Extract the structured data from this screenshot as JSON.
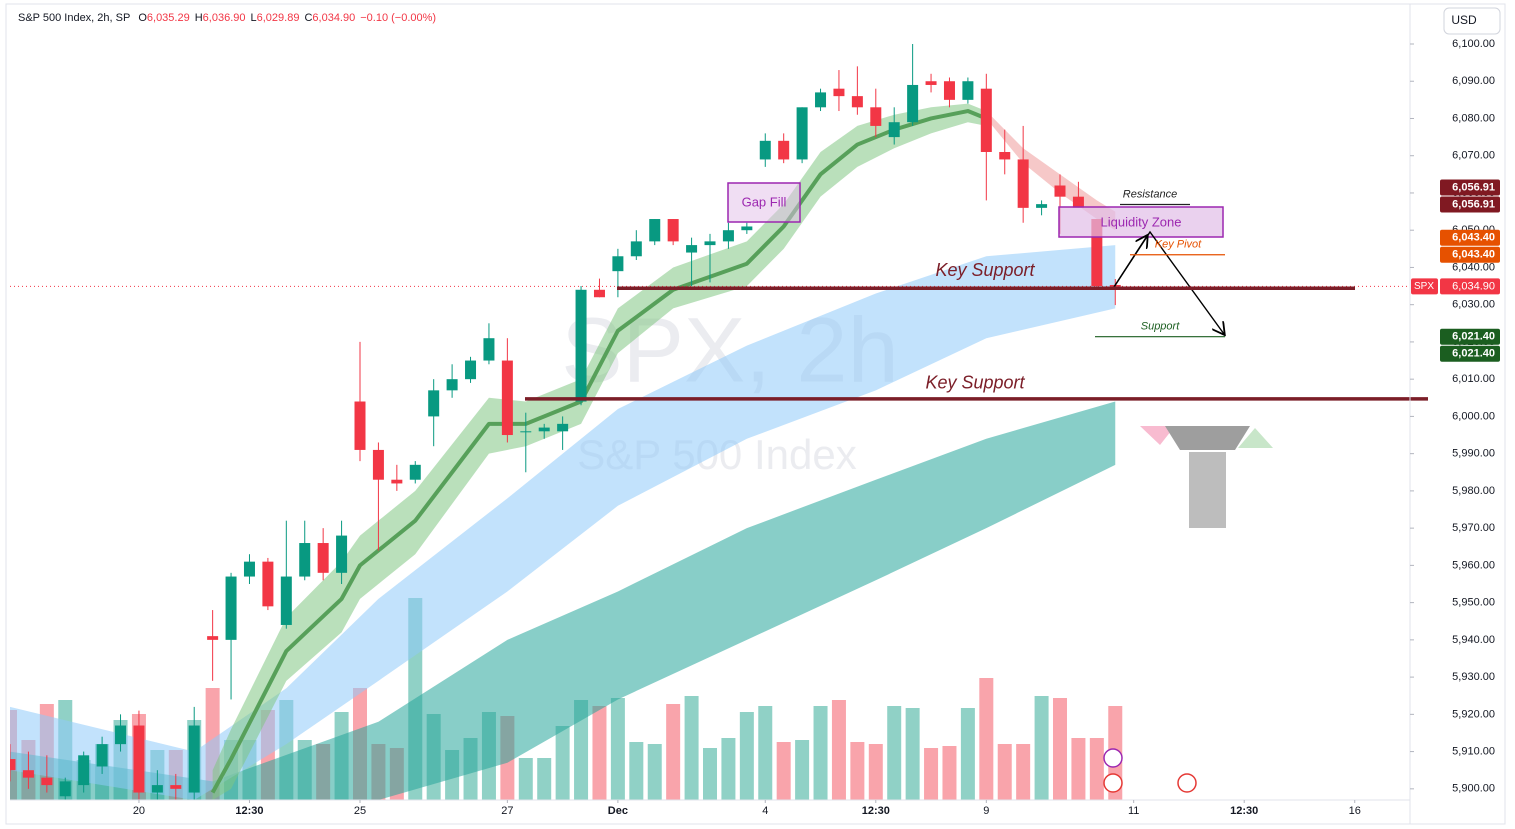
{
  "header": {
    "symbol": "S&P 500 Index, 2h, SP",
    "o_label": "O",
    "o": "6,035.29",
    "h_label": "H",
    "h": "6,036.90",
    "l_label": "L",
    "l": "6,029.89",
    "c_label": "C",
    "c": "6,034.90",
    "change": "−0.10 (−0.00%)"
  },
  "currency": "USD",
  "watermark": {
    "symbol": "SPX, 2h",
    "name": "S&P 500 Index"
  },
  "boxes": {
    "gap": "Gap Fill",
    "liquidity": "Liquidity Zone"
  },
  "chart_data": {
    "type": "candlestick",
    "up_color": "#089981",
    "down_color": "#f23645",
    "x": [
      0,
      1,
      2,
      3,
      4,
      5,
      6,
      7,
      8,
      9,
      10,
      11,
      12,
      13,
      14,
      15,
      16,
      17,
      18,
      19,
      20,
      21,
      22,
      23,
      24,
      25,
      26,
      27,
      28,
      29,
      30,
      31,
      32,
      33,
      34,
      35,
      36,
      37,
      38,
      39,
      40,
      41,
      42,
      43,
      44,
      45,
      46,
      47,
      48,
      49,
      50,
      51,
      52,
      53,
      54,
      55,
      56,
      57,
      58,
      59,
      60
    ],
    "open": [
      5908,
      5905,
      5903,
      5898,
      5901,
      5906,
      5912,
      5917,
      5899,
      5901,
      5899,
      5941,
      5940,
      5957,
      5961,
      5944,
      5957,
      5966,
      5958,
      6004,
      5991,
      5983,
      5983,
      6000,
      6007,
      6010,
      6015,
      6015,
      5996,
      5996,
      5996,
      6004,
      6034,
      6039,
      6043,
      6047,
      6053,
      6044,
      6046,
      6047,
      6050,
      6069,
      6074,
      6069,
      6083,
      6088,
      6086,
      6083,
      6075,
      6079,
      6090,
      6090,
      6085,
      6088,
      6071,
      6069,
      6056,
      6062,
      6059,
      6053,
      6035.29
    ],
    "high": [
      5912,
      5910,
      5909,
      5903,
      5910,
      5914,
      5920,
      5921,
      5905,
      5904,
      5922,
      5948,
      5958,
      5963,
      5962,
      5972,
      5972,
      5970,
      5972,
      6020,
      5993,
      5987,
      5988,
      6010,
      6014,
      6016,
      6025,
      6021,
      6001,
      5998,
      6000,
      6035,
      6037,
      6045,
      6050,
      6053,
      6053,
      6048,
      6049,
      6052,
      6052,
      6076,
      6076,
      6083,
      6088,
      6093,
      6094,
      6088,
      6083,
      6100,
      6092,
      6091,
      6091,
      6092,
      6077,
      6078,
      6058,
      6065,
      6063,
      6053,
      6036.9
    ],
    "low": [
      5902,
      5900,
      5899,
      5897,
      5899,
      5904,
      5910,
      5897,
      5897,
      5897,
      5897,
      5929,
      5924,
      5955,
      5948,
      5943,
      5956,
      5956,
      5955,
      5988,
      5964,
      5980,
      5982,
      5992,
      6005,
      6009,
      6014,
      5993,
      5985,
      5994,
      5991,
      6003,
      6032,
      6032,
      6042,
      6046,
      6046,
      6035,
      6036,
      6045,
      6049,
      6067,
      6068,
      6068,
      6082,
      6082,
      6081,
      6075,
      6073,
      6078,
      6087,
      6083,
      6084,
      6058,
      6065,
      6052,
      6054,
      6049,
      6056,
      6034,
      6029.89
    ],
    "close": [
      5905,
      5903,
      5901,
      5902,
      5909,
      5912,
      5917,
      5899,
      5901,
      5900,
      5917,
      5940,
      5957,
      5961,
      5949,
      5957,
      5966,
      5958,
      5968,
      5991,
      5983,
      5982,
      5987,
      6007,
      6010,
      6015,
      6021,
      5995,
      5996,
      5997,
      5998,
      6034,
      6032,
      6043,
      6047,
      6053,
      6047,
      6046,
      6047,
      6050,
      6051,
      6074,
      6069,
      6083,
      6087,
      6086,
      6083,
      6078,
      6079,
      6089,
      6089,
      6085,
      6090,
      6071,
      6069,
      6056,
      6057,
      6059,
      6056,
      6035,
      6034.9
    ],
    "volume": [
      45,
      30,
      48,
      50,
      20,
      28,
      40,
      43,
      25,
      25,
      40,
      56,
      30,
      30,
      45,
      50,
      30,
      28,
      44,
      56,
      28,
      26,
      101,
      43,
      25,
      31,
      44,
      42,
      21,
      21,
      37,
      50,
      47,
      51,
      29,
      28,
      48,
      52,
      26,
      31,
      44,
      47,
      29,
      30,
      47,
      50,
      29,
      28,
      47,
      46,
      26,
      27,
      46,
      61,
      28,
      28,
      52,
      51,
      31,
      31,
      47
    ],
    "xlim": [
      0,
      76
    ],
    "xticks": [
      {
        "value": 7,
        "label": "20"
      },
      {
        "value": 13,
        "label": "12:30"
      },
      {
        "value": 19,
        "label": "25"
      },
      {
        "value": 27,
        "label": "27"
      },
      {
        "value": 33,
        "label": "Dec"
      },
      {
        "value": 41,
        "label": "4"
      },
      {
        "value": 47,
        "label": "12:30"
      },
      {
        "value": 53,
        "label": "9"
      },
      {
        "value": 61,
        "label": "11"
      },
      {
        "value": 67,
        "label": "12:30"
      },
      {
        "value": 73,
        "label": "16"
      }
    ],
    "ylim": [
      5897,
      6110
    ],
    "yticks": [
      {
        "value": 5900,
        "label": "5,900.00"
      },
      {
        "value": 5910,
        "label": "5,910.00"
      },
      {
        "value": 5920,
        "label": "5,920.00"
      },
      {
        "value": 5930,
        "label": "5,930.00"
      },
      {
        "value": 5940,
        "label": "5,940.00"
      },
      {
        "value": 5950,
        "label": "5,950.00"
      },
      {
        "value": 5960,
        "label": "5,960.00"
      },
      {
        "value": 5970,
        "label": "5,970.00"
      },
      {
        "value": 5980,
        "label": "5,980.00"
      },
      {
        "value": 5990,
        "label": "5,990.00"
      },
      {
        "value": 6000,
        "label": "6,000.00"
      },
      {
        "value": 6010,
        "label": "6,010.00"
      },
      {
        "value": 6020,
        "label": "6,020.00"
      },
      {
        "value": 6030,
        "label": "6,030.00"
      },
      {
        "value": 6040,
        "label": "6,040.00"
      },
      {
        "value": 6050,
        "label": "6,050.00"
      },
      {
        "value": 6060,
        "label": "6,060.00"
      },
      {
        "value": 6070,
        "label": "6,070.00"
      },
      {
        "value": 6080,
        "label": "6,080.00"
      },
      {
        "value": 6090,
        "label": "6,090.00"
      },
      {
        "value": 6100,
        "label": "6,100.00"
      }
    ],
    "bands": [
      {
        "color": "#26a69a",
        "x": [
          0,
          11,
          20,
          27,
          33,
          40,
          47,
          53,
          60
        ],
        "upper": [
          5910,
          5902,
          5918,
          5940,
          5953,
          5970,
          5983,
          5994,
          6004
        ],
        "lower": [
          5897,
          5897,
          5897,
          5907,
          5924,
          5940,
          5956,
          5970,
          5987
        ]
      },
      {
        "color": "#90caf9",
        "x": [
          0,
          10,
          15,
          20,
          27,
          33,
          40,
          47,
          53,
          60
        ],
        "upper": [
          5922,
          5910,
          5927,
          5951,
          5978,
          6002,
          6019,
          6033,
          6043,
          6046
        ],
        "lower": [
          5905,
          5897,
          5912,
          5929,
          5953,
          5976,
          5994,
          6007,
          6021,
          6029
        ]
      },
      {
        "color": "#81c784",
        "x": [
          11,
          12,
          15,
          18,
          19,
          22,
          26,
          28,
          31,
          33,
          36,
          40,
          42,
          44,
          46,
          48,
          50,
          52,
          53
        ],
        "upper": [
          5905,
          5916,
          5946,
          5961,
          5968,
          5980,
          6005,
          6004,
          6010,
          6029,
          6040,
          6047,
          6057,
          6071,
          6078,
          6081,
          6083,
          6084,
          6082
        ],
        "lower": [
          5897,
          5900,
          5929,
          5942,
          5951,
          5963,
          5990,
          5992,
          5998,
          6017,
          6029,
          6035,
          6045,
          6059,
          6067,
          6072,
          6076,
          6079,
          6078
        ]
      },
      {
        "color": "#ef9a9a",
        "x": [
          53,
          55,
          57,
          59,
          60
        ],
        "upper": [
          6082,
          6072,
          6065,
          6058,
          6055
        ],
        "lower": [
          6080,
          6068,
          6060,
          6053,
          6050
        ]
      }
    ],
    "ma_line": {
      "color": "#57a05a",
      "x": [
        11,
        12,
        15,
        18,
        19,
        22,
        26,
        28,
        31,
        33,
        36,
        40,
        42,
        44,
        46,
        48,
        50,
        52,
        53
      ],
      "values": [
        5899,
        5908,
        5937,
        5951,
        5960,
        5972,
        5998,
        5998,
        6004,
        6023,
        6034,
        6041,
        6051,
        6065,
        6073,
        6077,
        6080,
        6082,
        6080
      ]
    },
    "last_price": {
      "symbol": "SPX",
      "value": 6034.9,
      "label": "6,034.90",
      "color": "#f23645"
    },
    "levels": [
      {
        "text": "Resistance",
        "value": 6056.91,
        "label": "6,056.91",
        "color": "#801922",
        "line_color": "#222222"
      },
      {
        "text": "Key Pivot",
        "value": 6043.4,
        "label": "6,043.40",
        "color": "#e65100",
        "line_color": "#e65100"
      },
      {
        "text": "Support",
        "value": 6021.4,
        "label": "6,021.40",
        "color": "#1b5e20",
        "line_color": "#1b5e20"
      }
    ],
    "key_supports": {
      "color": "#7b1e28",
      "items": [
        {
          "text": "Key Support",
          "value": 6034.4
        },
        {
          "text": "Key Support",
          "value": 6004.7
        }
      ]
    }
  }
}
